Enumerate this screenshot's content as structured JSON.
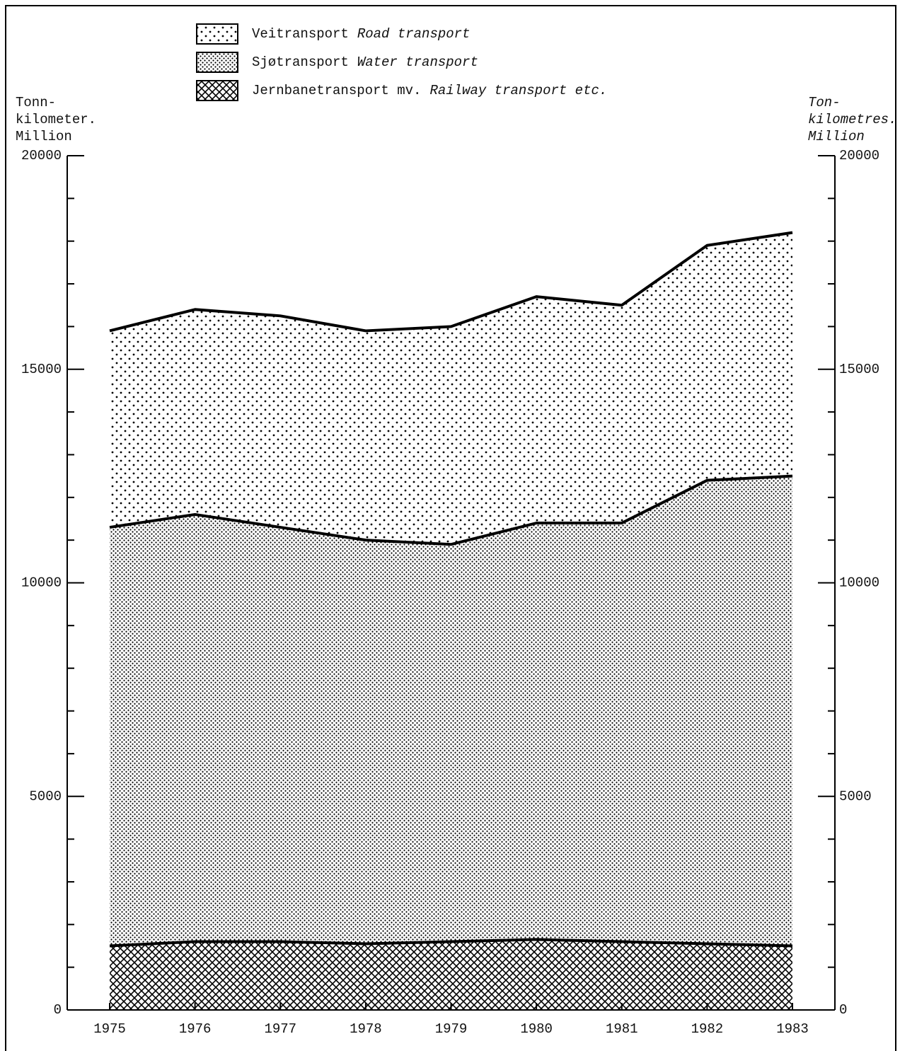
{
  "chart_data": {
    "type": "stacked_area",
    "y_label_left": [
      "Tonn-",
      "kilometer.",
      "Million"
    ],
    "y_label_right": [
      "Ton-",
      "kilometres.",
      "Million"
    ],
    "categories": [
      "1975",
      "1976",
      "1977",
      "1978",
      "1979",
      "1980",
      "1981",
      "1982",
      "1983"
    ],
    "series": [
      {
        "name": "Jernbanetransport mv.",
        "name_en": "Railway transport etc.",
        "color": "#000000",
        "pattern": "crosshatch",
        "values": [
          1500,
          1600,
          1600,
          1550,
          1600,
          1650,
          1600,
          1550,
          1500
        ]
      },
      {
        "name": "Sjøtransport",
        "name_en": "Water transport",
        "color": "#000000",
        "pattern": "dense-dots",
        "values": [
          9800,
          10000,
          9700,
          9450,
          9300,
          9750,
          9800,
          10850,
          11000
        ]
      },
      {
        "name": "Veitransport",
        "name_en": "Road transport",
        "color": "#000000",
        "pattern": "sparse-dots",
        "values": [
          4600,
          4800,
          4950,
          4900,
          5100,
          5300,
          5100,
          5500,
          5700
        ]
      }
    ],
    "ylim": [
      0,
      20000
    ],
    "yticks": [
      0,
      5000,
      10000,
      15000,
      20000
    ],
    "yticks_minor": [
      1000,
      2000,
      3000,
      4000,
      6000,
      7000,
      8000,
      9000,
      11000,
      12000,
      13000,
      14000,
      16000,
      17000,
      18000,
      19000
    ],
    "y2lim": [
      0,
      20000
    ],
    "y2ticks": [
      0,
      5000,
      10000,
      15000,
      20000
    ],
    "legend": "top-center"
  }
}
